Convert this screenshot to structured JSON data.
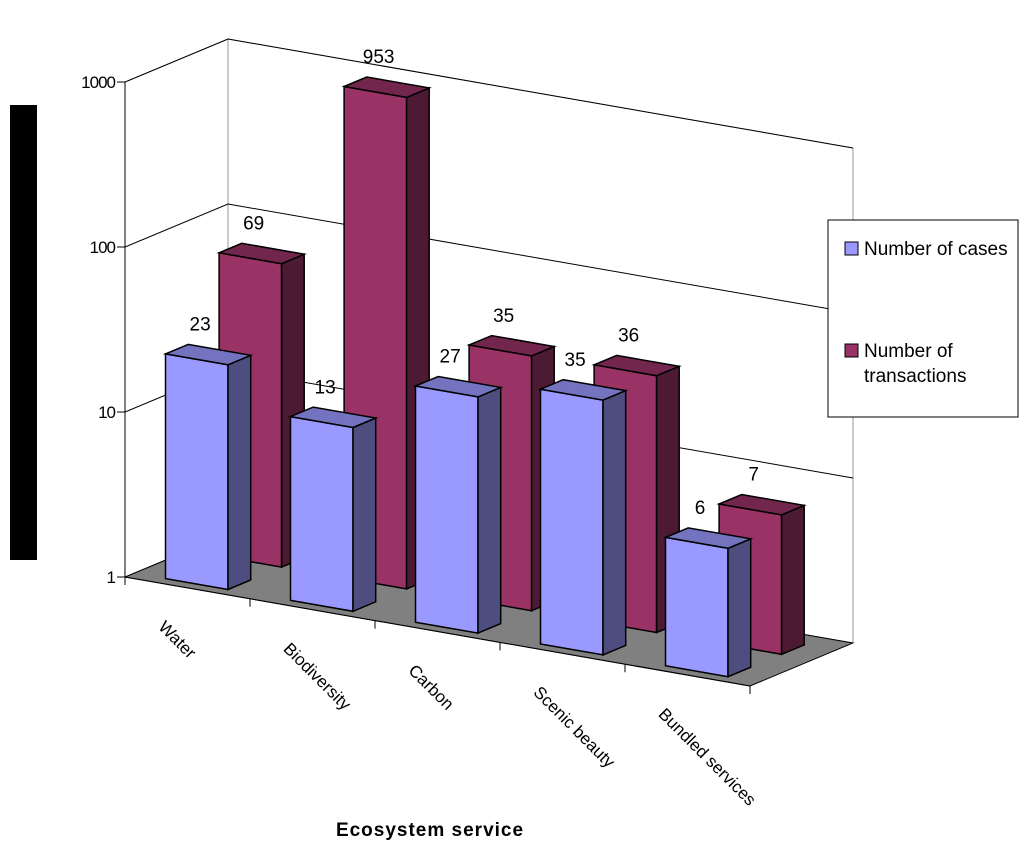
{
  "chart_data": {
    "type": "bar",
    "subtype": "3d-clustered-column",
    "title": "",
    "xlabel": "Ecosystem service",
    "ylabel": "",
    "y_scale": "log",
    "ylim": [
      1,
      1000
    ],
    "y_ticks": [
      "1",
      "10",
      "100",
      "1000"
    ],
    "categories": [
      "Water",
      "Biodiversity",
      "Carbon",
      "Scenic beauty",
      "Bundled services"
    ],
    "series": [
      {
        "name": "Number of cases",
        "values": [
          23,
          13,
          27,
          35,
          6
        ],
        "color": "#9999ff"
      },
      {
        "name": "Number of transactions",
        "values": [
          69,
          953,
          35,
          36,
          7
        ],
        "color": "#993366"
      }
    ],
    "grid": true,
    "legend_position": "right",
    "floor_color": "#808080"
  }
}
